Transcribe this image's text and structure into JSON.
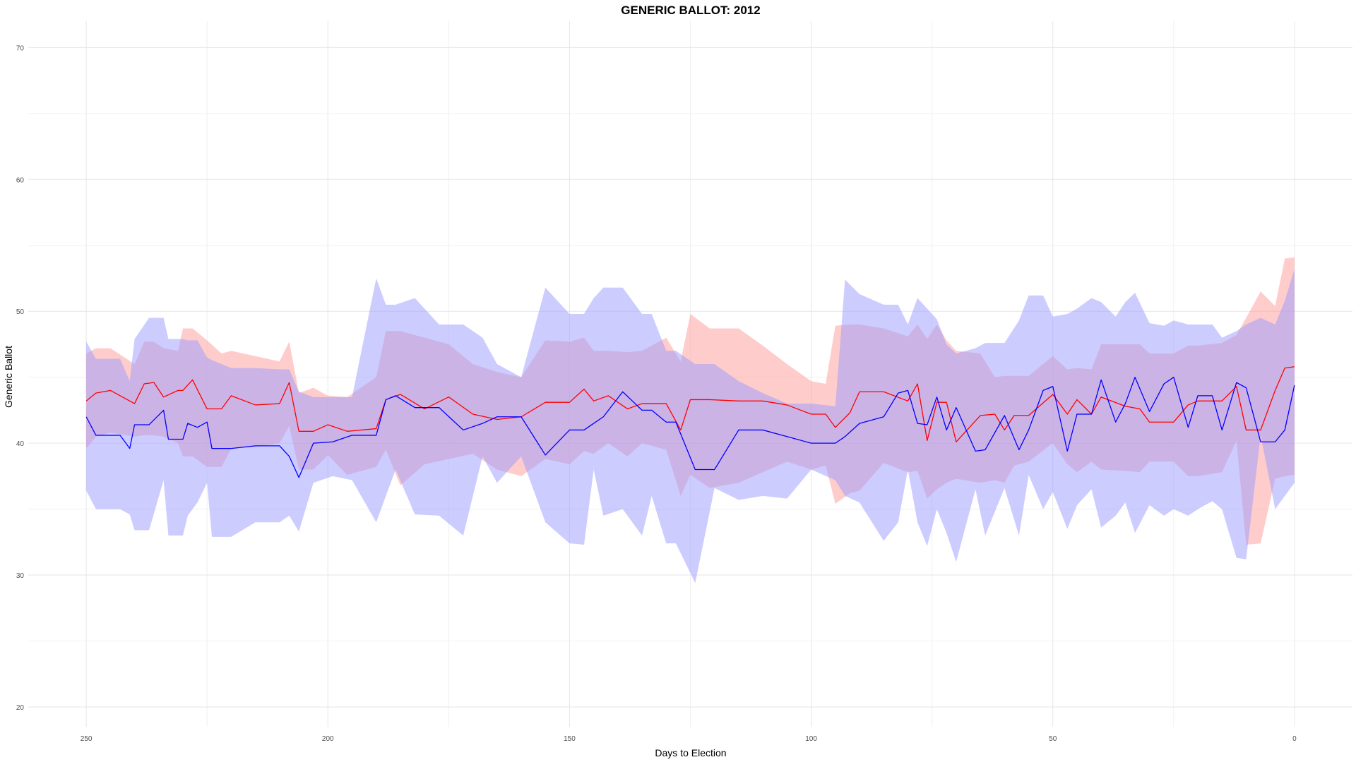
{
  "chart_data": {
    "type": "line",
    "title": "GENERIC BALLOT: 2012",
    "xlabel": "Days to Election",
    "ylabel": "Generic Ballot",
    "x_reversed": true,
    "xlim": [
      262,
      -12
    ],
    "ylim": [
      18.5,
      72
    ],
    "x_ticks": [
      250,
      200,
      150,
      100,
      50,
      0
    ],
    "x_tick_labels": [
      "250",
      "200",
      "150",
      "100",
      "50",
      "0"
    ],
    "y_ticks": [
      20,
      30,
      40,
      50,
      60,
      70
    ],
    "y_tick_labels": [
      "20",
      "30",
      "40",
      "50",
      "60",
      "70"
    ],
    "grid": true,
    "legend": "none",
    "series": [
      {
        "color": "#ff0000",
        "band_color": "#ff9999",
        "x": [
          250,
          248,
          245,
          240,
          238,
          236,
          234,
          231,
          230,
          228,
          225,
          222,
          220,
          215,
          210,
          208,
          206,
          203,
          200,
          196,
          190,
          188,
          185,
          180,
          175,
          170,
          165,
          160,
          155,
          150,
          147,
          145,
          142,
          138,
          135,
          130,
          127,
          125,
          121,
          115,
          110,
          105,
          100,
          97,
          95,
          92,
          90,
          85,
          80,
          78,
          76,
          74,
          72,
          70,
          65,
          62,
          60,
          58,
          55,
          50,
          47,
          45,
          42,
          40,
          35,
          32,
          30,
          25,
          22,
          20,
          15,
          12,
          10,
          7,
          4,
          2,
          0
        ],
        "values": [
          43.2,
          43.8,
          44.0,
          43.0,
          44.5,
          44.6,
          43.5,
          44.0,
          44.0,
          44.8,
          42.6,
          42.6,
          43.6,
          42.9,
          43.0,
          44.6,
          40.9,
          40.9,
          41.4,
          40.9,
          41.1,
          43.3,
          43.7,
          42.6,
          43.5,
          42.2,
          41.8,
          42.0,
          43.1,
          43.1,
          44.1,
          43.2,
          43.6,
          42.6,
          43.0,
          43.0,
          41.0,
          43.3,
          43.3,
          43.2,
          43.2,
          42.9,
          42.2,
          42.2,
          41.2,
          42.3,
          43.9,
          43.9,
          43.2,
          44.5,
          40.2,
          43.1,
          43.1,
          40.1,
          42.1,
          42.2,
          41.0,
          42.1,
          42.1,
          43.7,
          42.2,
          43.3,
          42.2,
          43.5,
          42.8,
          42.6,
          41.6,
          41.6,
          42.9,
          43.2,
          43.2,
          44.3,
          41.0,
          41.0,
          44.0,
          45.7,
          45.8
        ],
        "upper": [
          46.8,
          47.2,
          47.2,
          46.0,
          47.7,
          47.7,
          47.2,
          47.0,
          48.7,
          48.7,
          47.8,
          46.8,
          47.0,
          46.6,
          46.2,
          47.7,
          43.8,
          44.2,
          43.6,
          43.5,
          45.0,
          48.5,
          48.5,
          48.0,
          47.5,
          46.0,
          45.4,
          45.0,
          47.8,
          47.7,
          48.0,
          47.0,
          47.0,
          46.9,
          47.0,
          48.0,
          46.2,
          49.8,
          48.7,
          48.7,
          47.4,
          46.0,
          44.7,
          44.5,
          48.9,
          49.0,
          49.0,
          48.7,
          48.1,
          49.0,
          47.9,
          49.0,
          47.8,
          47.0,
          46.8,
          45.0,
          45.1,
          45.1,
          45.1,
          46.6,
          45.6,
          45.7,
          45.6,
          47.5,
          47.5,
          47.5,
          46.8,
          46.8,
          47.4,
          47.4,
          47.6,
          48.2,
          49.5,
          51.5,
          50.4,
          54.0,
          54.1
        ],
        "lower": [
          39.6,
          40.5,
          40.8,
          40.5,
          40.6,
          40.6,
          40.5,
          40.0,
          39.0,
          39.0,
          38.2,
          38.2,
          39.6,
          39.7,
          40.0,
          41.3,
          38.0,
          38.0,
          39.1,
          37.6,
          38.2,
          39.5,
          36.8,
          38.4,
          38.8,
          39.2,
          38.0,
          37.5,
          38.8,
          38.4,
          39.4,
          39.2,
          40.0,
          39.0,
          40.0,
          39.5,
          36.0,
          37.6,
          36.6,
          37.0,
          37.8,
          38.6,
          38.0,
          38.3,
          35.4,
          36.2,
          36.4,
          38.5,
          37.8,
          37.9,
          35.8,
          36.5,
          37.0,
          37.3,
          37.0,
          37.2,
          37.0,
          38.3,
          38.6,
          40.0,
          38.4,
          37.8,
          38.6,
          38.0,
          37.9,
          37.8,
          38.6,
          38.6,
          37.5,
          37.5,
          37.8,
          40.2,
          32.3,
          32.4,
          37.3,
          37.5,
          37.6
        ]
      },
      {
        "color": "#0000ff",
        "band_color": "#9999ff",
        "x": [
          250,
          248,
          243,
          241,
          240,
          237,
          234,
          233,
          230,
          229,
          227,
          225,
          224,
          220,
          215,
          210,
          208,
          206,
          203,
          199,
          195,
          190,
          188,
          186,
          182,
          177,
          172,
          168,
          165,
          160,
          155,
          150,
          147,
          145,
          143,
          139,
          135,
          133,
          130,
          128,
          124,
          120,
          115,
          110,
          105,
          100,
          95,
          93,
          90,
          85,
          82,
          80,
          78,
          76,
          74,
          72,
          70,
          66,
          64,
          60,
          57,
          55,
          52,
          50,
          47,
          45,
          42,
          40,
          37,
          35,
          33,
          30,
          27,
          25,
          22,
          20,
          17,
          15,
          12,
          10,
          7,
          4,
          2,
          0
        ],
        "values": [
          42.0,
          40.6,
          40.6,
          39.6,
          41.4,
          41.4,
          42.5,
          40.3,
          40.3,
          41.5,
          41.2,
          41.6,
          39.6,
          39.6,
          39.8,
          39.8,
          39.0,
          37.4,
          40.0,
          40.1,
          40.6,
          40.6,
          43.3,
          43.6,
          42.7,
          42.7,
          41.0,
          41.5,
          42.0,
          42.0,
          39.1,
          41.0,
          41.0,
          41.5,
          42.0,
          43.9,
          42.5,
          42.5,
          41.6,
          41.6,
          38.0,
          38.0,
          41.0,
          41.0,
          40.5,
          40.0,
          40.0,
          40.5,
          41.5,
          42.0,
          43.8,
          44.0,
          41.5,
          41.4,
          43.5,
          41.0,
          42.7,
          39.4,
          39.5,
          42.1,
          39.5,
          41.0,
          44.0,
          44.3,
          39.4,
          42.2,
          42.2,
          44.8,
          41.6,
          43.0,
          45.0,
          42.4,
          44.5,
          45.0,
          41.2,
          43.6,
          43.6,
          41.0,
          44.6,
          44.2,
          40.1,
          40.1,
          41.0,
          44.4
        ],
        "upper": [
          47.7,
          46.4,
          46.4,
          44.7,
          47.9,
          49.5,
          49.5,
          47.9,
          47.9,
          47.8,
          47.8,
          46.5,
          46.3,
          45.7,
          45.7,
          45.6,
          45.6,
          43.9,
          43.5,
          43.5,
          43.5,
          52.5,
          50.5,
          50.5,
          51.0,
          49.0,
          49.0,
          48.0,
          46.0,
          45.0,
          51.8,
          49.8,
          49.8,
          51.0,
          51.8,
          51.8,
          49.8,
          49.8,
          47.0,
          47.0,
          46.0,
          46.0,
          44.7,
          43.8,
          43.0,
          43.0,
          42.8,
          52.4,
          51.3,
          50.5,
          50.5,
          49.0,
          51.0,
          50.2,
          49.4,
          47.5,
          46.8,
          47.2,
          47.6,
          47.6,
          49.3,
          51.2,
          51.2,
          49.6,
          49.8,
          50.2,
          51.0,
          50.7,
          49.6,
          50.7,
          51.4,
          49.1,
          48.9,
          49.3,
          49.0,
          49.0,
          49.0,
          48.0,
          48.5,
          49.0,
          49.5,
          49.0,
          50.8,
          53.2
        ],
        "lower": [
          36.4,
          35.0,
          35.0,
          34.6,
          33.4,
          33.4,
          37.2,
          33.0,
          33.0,
          34.5,
          35.5,
          37.0,
          32.9,
          32.9,
          34.0,
          34.0,
          34.5,
          33.3,
          37.0,
          37.5,
          37.2,
          34.0,
          36.0,
          38.0,
          34.6,
          34.5,
          33.0,
          39.0,
          37.0,
          39.0,
          34.0,
          32.4,
          32.3,
          38.0,
          34.5,
          35.0,
          33.0,
          36.0,
          32.4,
          32.4,
          29.4,
          36.6,
          35.7,
          36.0,
          35.8,
          38.0,
          37.2,
          36.0,
          35.5,
          32.6,
          34.0,
          38.0,
          34.0,
          32.2,
          35.0,
          33.2,
          31.0,
          36.5,
          33.0,
          36.6,
          33.0,
          37.6,
          35.0,
          36.3,
          33.5,
          35.3,
          36.5,
          33.6,
          34.5,
          35.5,
          33.2,
          35.3,
          34.5,
          35.0,
          34.5,
          35.0,
          35.6,
          35.0,
          31.3,
          31.2,
          40.6,
          35.0,
          36.0,
          37.0
        ]
      }
    ]
  }
}
